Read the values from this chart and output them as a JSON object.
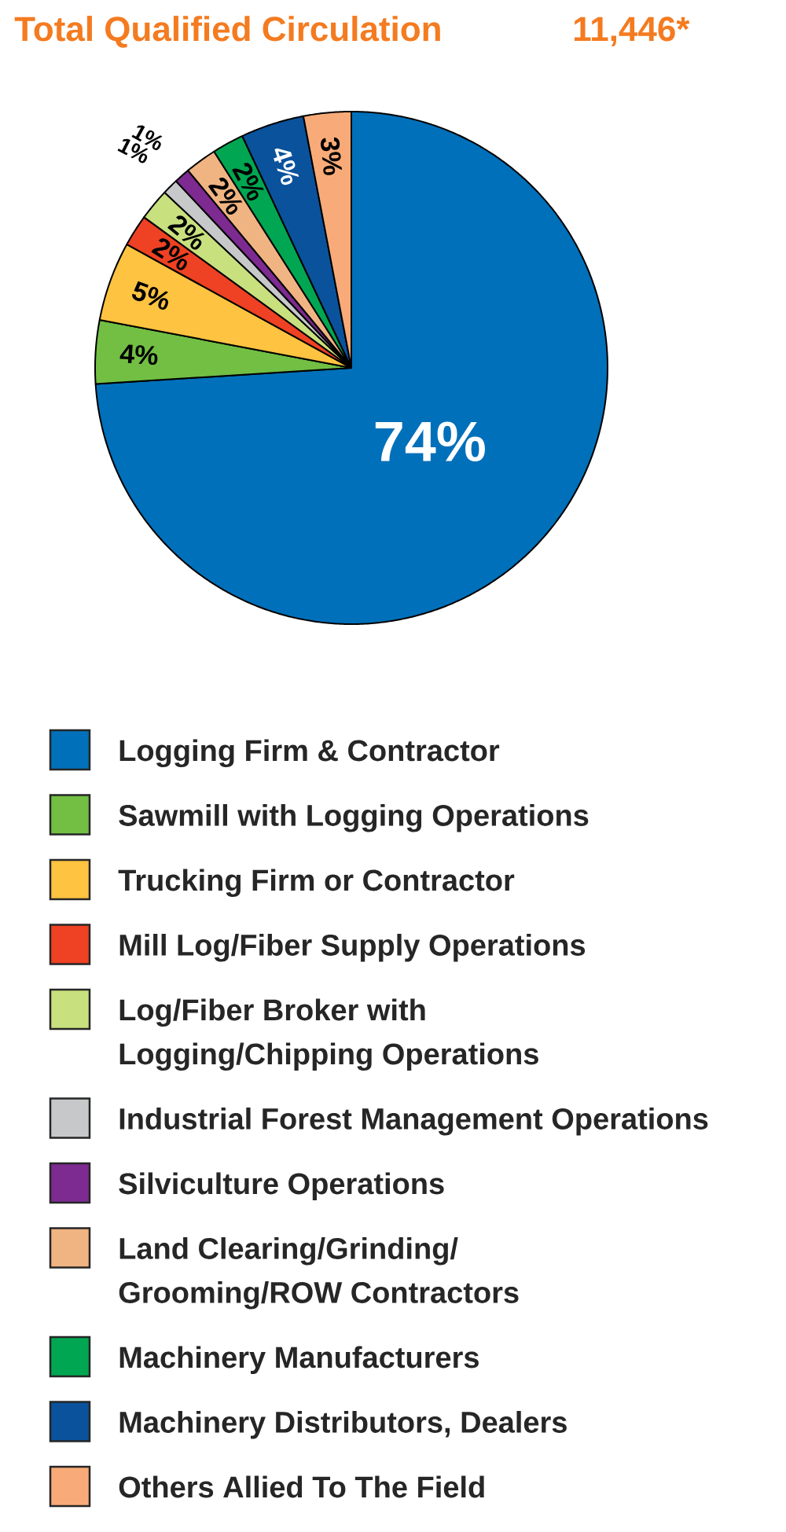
{
  "chart_data": {
    "type": "pie",
    "title": "Total Qualified Circulation",
    "subtitle": "11,446*",
    "categories": [
      "Logging Firm & Contractor",
      "Sawmill with Logging Operations",
      "Trucking Firm or Contractor",
      "Mill Log/Fiber Supply Operations",
      "Log/Fiber Broker with\nLogging/Chipping Operations",
      "Industrial Forest Management Operations",
      "Silviculture Operations",
      "Land Clearing/Grinding/\nGrooming/ROW Contractors",
      "Machinery Manufacturers",
      "Machinery Distributors, Dealers",
      "Others Allied To The Field"
    ],
    "values": [
      74,
      4,
      5,
      2,
      2,
      1,
      1,
      2,
      2,
      4,
      3
    ],
    "colors": [
      "#0070ba",
      "#72bf44",
      "#fec340",
      "#ef4123",
      "#c8e07e",
      "#c7c8ca",
      "#7d2a91",
      "#f0b482",
      "#00a651",
      "#0a529c",
      "#f8ab78"
    ],
    "value_labels": [
      "74%",
      "4%",
      "5%",
      "2%",
      "2%",
      "1%",
      "1%",
      "2%",
      "2%",
      "4%",
      "3%"
    ],
    "legend": "bottom"
  }
}
